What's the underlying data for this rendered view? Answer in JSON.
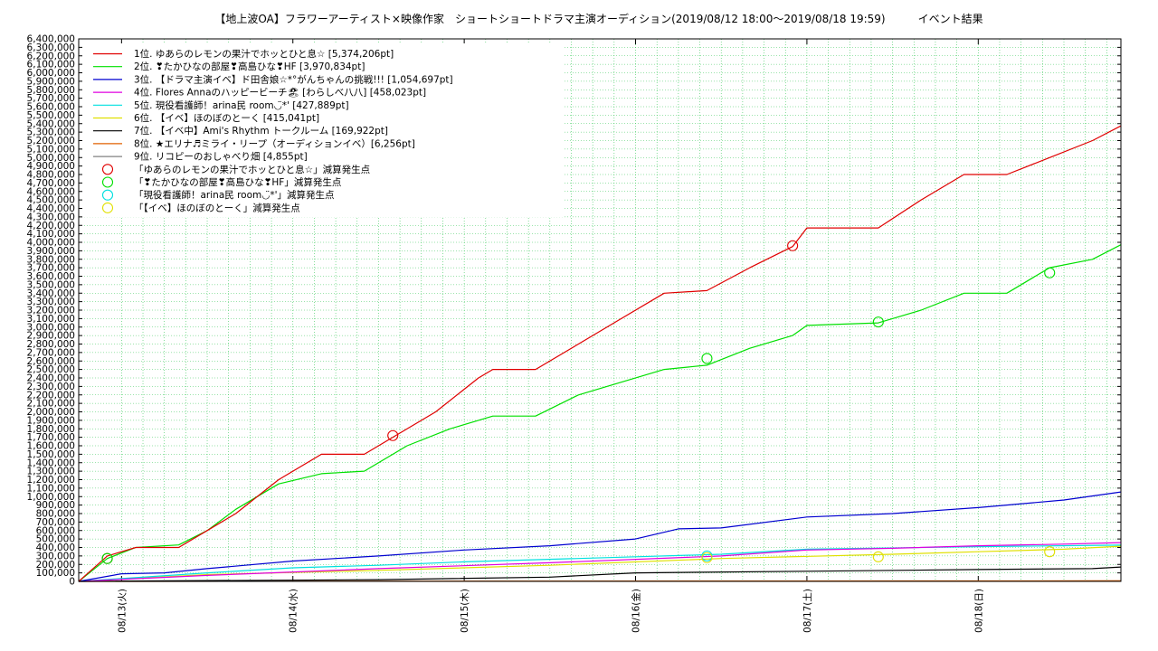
{
  "chart_data": {
    "type": "line",
    "title": "【地上波OA】フラワーアーティスト×映像作家　ショートショートドラマ主演オーディション(2019/08/12 18:00～2019/08/18 19:59)　　　イベント結果",
    "x_range": [
      "2019-08-12 18:00",
      "2019-08-18 19:59"
    ],
    "x_ticks": [
      {
        "label": "08/13(火)",
        "date": "2019-08-13 00:00"
      },
      {
        "label": "08/14(水)",
        "date": "2019-08-14 00:00"
      },
      {
        "label": "08/15(木)",
        "date": "2019-08-15 00:00"
      },
      {
        "label": "08/16(金)",
        "date": "2019-08-16 00:00"
      },
      {
        "label": "08/17(土)",
        "date": "2019-08-17 00:00"
      },
      {
        "label": "08/18(日)",
        "date": "2019-08-18 00:00"
      }
    ],
    "ylim": [
      0,
      6400000
    ],
    "y_tick_step": 100000,
    "grid": true,
    "legend_position": "top-left",
    "series": [
      {
        "name": "1位. ゆあらのレモンの果汁でホッとひと息☆ [5,374,206pt]",
        "color": "#e00000",
        "points": [
          [
            "2019-08-12 18:00",
            0
          ],
          [
            "2019-08-12 22:00",
            300000
          ],
          [
            "2019-08-13 02:00",
            400000
          ],
          [
            "2019-08-13 08:00",
            400000
          ],
          [
            "2019-08-13 12:00",
            600000
          ],
          [
            "2019-08-13 16:00",
            800000
          ],
          [
            "2019-08-13 22:00",
            1200000
          ],
          [
            "2019-08-14 04:00",
            1500000
          ],
          [
            "2019-08-14 10:00",
            1500000
          ],
          [
            "2019-08-14 14:00",
            1700000
          ],
          [
            "2019-08-14 20:00",
            2000000
          ],
          [
            "2019-08-15 02:00",
            2400000
          ],
          [
            "2019-08-15 04:00",
            2500000
          ],
          [
            "2019-08-15 10:00",
            2500000
          ],
          [
            "2019-08-15 16:00",
            2800000
          ],
          [
            "2019-08-15 22:00",
            3100000
          ],
          [
            "2019-08-16 04:00",
            3400000
          ],
          [
            "2019-08-16 10:00",
            3430000
          ],
          [
            "2019-08-16 16:00",
            3700000
          ],
          [
            "2019-08-16 22:00",
            3950000
          ],
          [
            "2019-08-17 00:00",
            4170000
          ],
          [
            "2019-08-17 10:00",
            4170000
          ],
          [
            "2019-08-17 16:00",
            4500000
          ],
          [
            "2019-08-17 22:00",
            4800000
          ],
          [
            "2019-08-18 04:00",
            4800000
          ],
          [
            "2019-08-18 10:00",
            5000000
          ],
          [
            "2019-08-18 16:00",
            5200000
          ],
          [
            "2019-08-18 19:59",
            5374206
          ]
        ]
      },
      {
        "name": "2位. ❣たかひなの部屋❣高島ひな❣HF [3,970,834pt]",
        "color": "#00e000",
        "points": [
          [
            "2019-08-12 18:00",
            0
          ],
          [
            "2019-08-12 22:00",
            270000
          ],
          [
            "2019-08-13 02:00",
            400000
          ],
          [
            "2019-08-13 08:00",
            430000
          ],
          [
            "2019-08-13 12:00",
            600000
          ],
          [
            "2019-08-13 16:00",
            850000
          ],
          [
            "2019-08-13 22:00",
            1150000
          ],
          [
            "2019-08-14 04:00",
            1270000
          ],
          [
            "2019-08-14 10:00",
            1300000
          ],
          [
            "2019-08-14 16:00",
            1600000
          ],
          [
            "2019-08-14 22:00",
            1800000
          ],
          [
            "2019-08-15 04:00",
            1950000
          ],
          [
            "2019-08-15 10:00",
            1950000
          ],
          [
            "2019-08-15 16:00",
            2200000
          ],
          [
            "2019-08-15 22:00",
            2350000
          ],
          [
            "2019-08-16 04:00",
            2500000
          ],
          [
            "2019-08-16 10:00",
            2550000
          ],
          [
            "2019-08-16 16:00",
            2750000
          ],
          [
            "2019-08-16 22:00",
            2900000
          ],
          [
            "2019-08-17 00:00",
            3020000
          ],
          [
            "2019-08-17 10:00",
            3050000
          ],
          [
            "2019-08-17 16:00",
            3200000
          ],
          [
            "2019-08-17 22:00",
            3400000
          ],
          [
            "2019-08-18 04:00",
            3400000
          ],
          [
            "2019-08-18 10:00",
            3700000
          ],
          [
            "2019-08-18 16:00",
            3800000
          ],
          [
            "2019-08-18 19:59",
            3970834
          ]
        ]
      },
      {
        "name": "3位. 【ドラマ主演イベ】ド田舎娘☆*°がんちゃんの挑戦!!! [1,054,697pt]",
        "color": "#0000d0",
        "points": [
          [
            "2019-08-12 18:00",
            0
          ],
          [
            "2019-08-13 00:00",
            90000
          ],
          [
            "2019-08-13 06:00",
            100000
          ],
          [
            "2019-08-13 12:00",
            150000
          ],
          [
            "2019-08-14 00:00",
            240000
          ],
          [
            "2019-08-14 12:00",
            300000
          ],
          [
            "2019-08-15 00:00",
            370000
          ],
          [
            "2019-08-15 12:00",
            420000
          ],
          [
            "2019-08-16 00:00",
            500000
          ],
          [
            "2019-08-16 06:00",
            620000
          ],
          [
            "2019-08-16 12:00",
            630000
          ],
          [
            "2019-08-17 00:00",
            760000
          ],
          [
            "2019-08-17 12:00",
            800000
          ],
          [
            "2019-08-18 00:00",
            870000
          ],
          [
            "2019-08-18 12:00",
            960000
          ],
          [
            "2019-08-18 19:59",
            1054697
          ]
        ]
      },
      {
        "name": "4位. Flores Annaのハッピービーチ🏖 [わらしべ八八] [458,023pt]",
        "color": "#e000e0",
        "points": [
          [
            "2019-08-12 18:00",
            0
          ],
          [
            "2019-08-13 12:00",
            70000
          ],
          [
            "2019-08-14 12:00",
            150000
          ],
          [
            "2019-08-15 12:00",
            220000
          ],
          [
            "2019-08-16 12:00",
            300000
          ],
          [
            "2019-08-17 00:00",
            370000
          ],
          [
            "2019-08-17 12:00",
            390000
          ],
          [
            "2019-08-18 00:00",
            420000
          ],
          [
            "2019-08-18 12:00",
            440000
          ],
          [
            "2019-08-18 19:59",
            458023
          ]
        ]
      },
      {
        "name": "5位. 現役看護師！arina民 room◡̈*' [427,889pt]",
        "color": "#00e0e0",
        "points": [
          [
            "2019-08-12 18:00",
            0
          ],
          [
            "2019-08-13 12:00",
            100000
          ],
          [
            "2019-08-14 00:00",
            160000
          ],
          [
            "2019-08-14 12:00",
            190000
          ],
          [
            "2019-08-15 00:00",
            230000
          ],
          [
            "2019-08-16 00:00",
            290000
          ],
          [
            "2019-08-16 12:00",
            320000
          ],
          [
            "2019-08-17 00:00",
            380000
          ],
          [
            "2019-08-18 00:00",
            410000
          ],
          [
            "2019-08-18 19:59",
            427889
          ]
        ]
      },
      {
        "name": "6位. 【イベ】ほのぼのとーく [415,041pt]",
        "color": "#e0e000",
        "points": [
          [
            "2019-08-12 18:00",
            0
          ],
          [
            "2019-08-13 12:00",
            80000
          ],
          [
            "2019-08-14 12:00",
            130000
          ],
          [
            "2019-08-15 12:00",
            190000
          ],
          [
            "2019-08-16 12:00",
            270000
          ],
          [
            "2019-08-17 12:00",
            320000
          ],
          [
            "2019-08-18 00:00",
            350000
          ],
          [
            "2019-08-18 12:00",
            380000
          ],
          [
            "2019-08-18 19:59",
            415041
          ]
        ]
      },
      {
        "name": "7位. 【イベ中】Ami's Rhythm トークルーム [169,922pt]",
        "color": "#000000",
        "points": [
          [
            "2019-08-12 18:00",
            0
          ],
          [
            "2019-08-14 12:00",
            20000
          ],
          [
            "2019-08-15 12:00",
            50000
          ],
          [
            "2019-08-16 00:00",
            100000
          ],
          [
            "2019-08-17 00:00",
            120000
          ],
          [
            "2019-08-18 00:00",
            140000
          ],
          [
            "2019-08-18 16:00",
            150000
          ],
          [
            "2019-08-18 19:59",
            169922
          ]
        ]
      },
      {
        "name": "8位. ★エリナ♬ミライ・リープ（オーディションイベ）[6,256pt]",
        "color": "#e06000",
        "points": [
          [
            "2019-08-12 18:00",
            0
          ],
          [
            "2019-08-18 19:59",
            6256
          ]
        ]
      },
      {
        "name": "9位. リコピーのおしゃべり畑 [4,855pt]",
        "color": "#808080",
        "points": [
          [
            "2019-08-12 18:00",
            0
          ],
          [
            "2019-08-18 19:59",
            4855
          ]
        ]
      }
    ],
    "markers": [
      {
        "name": "「ゆあらのレモンの果汁でホッとひと息☆」減算発生点",
        "color": "#e00000",
        "points": [
          [
            "2019-08-12 22:00",
            270000
          ],
          [
            "2019-08-14 14:00",
            1720000
          ],
          [
            "2019-08-16 22:00",
            3960000
          ]
        ]
      },
      {
        "name": "「❣たかひなの部屋❣高島ひな❣HF」減算発生点",
        "color": "#00e000",
        "points": [
          [
            "2019-08-12 22:00",
            270000
          ],
          [
            "2019-08-16 10:00",
            2630000
          ],
          [
            "2019-08-17 10:00",
            3060000
          ],
          [
            "2019-08-18 10:00",
            3640000
          ]
        ]
      },
      {
        "name": "「現役看護師！arina民 room◡̈*'」減算発生点",
        "color": "#00e0e0",
        "points": [
          [
            "2019-08-16 10:00",
            300000
          ]
        ]
      },
      {
        "name": "「【イベ】ほのぼのとーく」減算発生点",
        "color": "#e0e000",
        "points": [
          [
            "2019-08-16 10:00",
            280000
          ],
          [
            "2019-08-17 10:00",
            290000
          ],
          [
            "2019-08-18 10:00",
            350000
          ]
        ]
      }
    ]
  }
}
